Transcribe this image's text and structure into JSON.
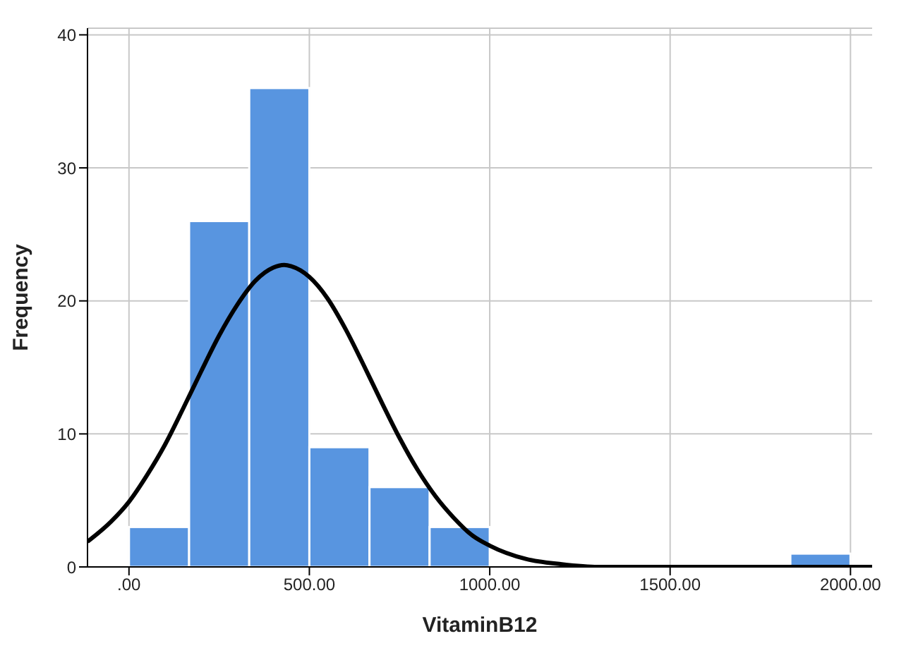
{
  "chart_data": {
    "type": "histogram",
    "xlabel": "VitaminB12",
    "ylabel": "Frequency",
    "bins": [
      0,
      166.67,
      333.33,
      500,
      666.67,
      833.33,
      1000,
      1166.67,
      1333.33,
      1500,
      1666.67,
      1833.33,
      2000
    ],
    "values": [
      3,
      26,
      36,
      9,
      6,
      3,
      0,
      0,
      0,
      0,
      0,
      1
    ],
    "color": "#5895e0",
    "series": [
      {
        "type": "line",
        "color": "#000000",
        "x": [
          -115,
          -50,
          0,
          50,
          100,
          150,
          200,
          250,
          300,
          350,
          400,
          430,
          450,
          500,
          550,
          600,
          650,
          700,
          750,
          800,
          850,
          900,
          950,
          1000,
          1100,
          1200,
          1300,
          1500,
          2060
        ],
        "values": [
          1.9,
          3.4,
          4.9,
          6.9,
          9.2,
          11.9,
          14.7,
          17.4,
          19.7,
          21.5,
          22.5,
          22.7,
          22.6,
          21.8,
          20.2,
          17.9,
          15.2,
          12.4,
          9.7,
          7.3,
          5.3,
          3.7,
          2.4,
          1.6,
          0.6,
          0.2,
          0,
          0,
          0
        ]
      }
    ],
    "xlim": [
      -115,
      2060
    ],
    "xticks": [
      {
        "value": 0,
        "label": ".00"
      },
      {
        "value": 500,
        "label": "500.00"
      },
      {
        "value": 1000,
        "label": "1000.00"
      },
      {
        "value": 1500,
        "label": "1500.00"
      },
      {
        "value": 2000,
        "label": "2000.00"
      }
    ],
    "ylim": [
      0,
      40.5
    ],
    "yticks": [
      0,
      10,
      20,
      30,
      40
    ],
    "grid": true,
    "marker": "none",
    "line_style": "solid"
  }
}
